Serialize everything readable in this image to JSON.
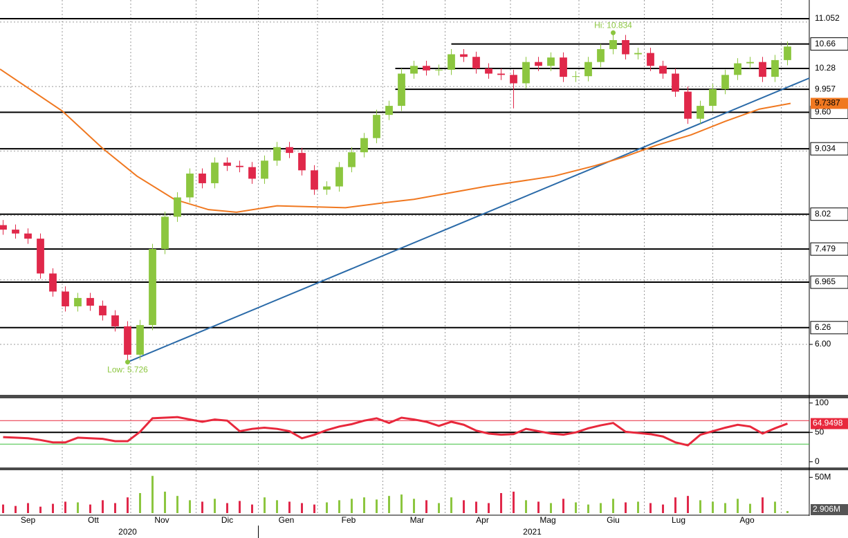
{
  "chart_data": {
    "type": "candlestick",
    "x": [
      1,
      5,
      9,
      13,
      17,
      21,
      25,
      29,
      33,
      37,
      41,
      45,
      49,
      53,
      57,
      61,
      65,
      69,
      73,
      77,
      81,
      85,
      89,
      93,
      97,
      101,
      105,
      109,
      113,
      117,
      121,
      125,
      129,
      133,
      137,
      141,
      145,
      149,
      153,
      157,
      161,
      165,
      169,
      173,
      177,
      181,
      185,
      189,
      193,
      197,
      201,
      205,
      209,
      213,
      217,
      221,
      225,
      229,
      233,
      237,
      241,
      245,
      249,
      253
    ],
    "open": [
      7.85,
      7.78,
      7.72,
      7.64,
      7.1,
      6.82,
      6.59,
      6.72,
      6.6,
      6.45,
      6.28,
      5.84,
      6.3,
      7.48,
      7.98,
      8.28,
      8.65,
      8.5,
      8.82,
      8.77,
      8.75,
      8.57,
      8.85,
      9.06,
      8.97,
      8.7,
      8.4,
      8.45,
      8.75,
      8.98,
      9.2,
      9.56,
      9.7,
      10.2,
      10.32,
      10.25,
      10.26,
      10.5,
      10.46,
      10.28,
      10.2,
      10.18,
      10.05,
      10.38,
      10.32,
      10.45,
      10.15,
      10.16,
      10.38,
      10.58,
      10.72,
      10.5,
      10.52,
      10.32,
      10.2,
      9.92,
      9.5,
      9.7,
      9.96,
      10.18,
      10.36,
      10.38,
      10.15,
      10.41
    ],
    "high": [
      7.93,
      7.86,
      7.8,
      7.72,
      7.18,
      6.9,
      6.8,
      6.8,
      6.68,
      6.53,
      6.36,
      6.38,
      7.56,
      8.06,
      8.36,
      8.73,
      8.73,
      8.9,
      8.9,
      8.85,
      8.83,
      8.93,
      9.14,
      9.14,
      9.05,
      8.78,
      8.53,
      8.83,
      9.06,
      9.28,
      9.64,
      9.78,
      10.28,
      10.4,
      10.4,
      10.34,
      10.58,
      10.58,
      10.54,
      10.36,
      10.28,
      10.26,
      10.46,
      10.46,
      10.53,
      10.53,
      10.24,
      10.46,
      10.66,
      10.83,
      10.8,
      10.6,
      10.6,
      10.4,
      10.28,
      10.0,
      9.78,
      10.04,
      10.26,
      10.44,
      10.46,
      10.46,
      10.49,
      10.7
    ],
    "low": [
      7.7,
      7.64,
      7.56,
      7.02,
      6.74,
      6.51,
      6.51,
      6.52,
      6.37,
      6.2,
      5.73,
      5.76,
      6.22,
      7.4,
      7.9,
      8.2,
      8.42,
      8.42,
      8.69,
      8.67,
      8.49,
      8.49,
      8.77,
      8.89,
      8.62,
      8.32,
      8.32,
      8.37,
      8.67,
      8.9,
      9.12,
      9.48,
      9.62,
      10.12,
      10.17,
      10.17,
      10.18,
      10.38,
      10.2,
      10.12,
      10.1,
      9.66,
      9.97,
      10.24,
      10.24,
      10.07,
      10.07,
      10.08,
      10.3,
      10.5,
      10.42,
      10.42,
      10.24,
      10.12,
      9.84,
      9.42,
      9.42,
      9.62,
      9.88,
      10.1,
      10.28,
      10.07,
      10.07,
      10.33
    ],
    "close": [
      7.78,
      7.72,
      7.64,
      7.1,
      6.82,
      6.59,
      6.72,
      6.6,
      6.45,
      6.28,
      5.84,
      6.3,
      7.48,
      7.98,
      8.28,
      8.65,
      8.5,
      8.82,
      8.77,
      8.75,
      8.57,
      8.85,
      9.06,
      8.97,
      8.7,
      8.4,
      8.45,
      8.75,
      8.98,
      9.2,
      9.56,
      9.7,
      10.2,
      10.32,
      10.25,
      10.26,
      10.5,
      10.46,
      10.28,
      10.2,
      10.18,
      10.05,
      10.38,
      10.32,
      10.45,
      10.15,
      10.16,
      10.38,
      10.58,
      10.72,
      10.5,
      10.52,
      10.32,
      10.2,
      9.92,
      9.5,
      9.7,
      9.96,
      10.18,
      10.36,
      10.38,
      10.15,
      10.41,
      10.62
    ],
    "up_color": "#8cc63f",
    "down_color": "#e0284a",
    "xlim": [
      0,
      260
    ],
    "ylim": [
      5.228,
      11.342
    ],
    "yticks": [
      {
        "value": 6,
        "label": "6.00"
      }
    ],
    "ygrid": [
      7,
      8,
      9,
      10,
      11
    ],
    "xgrid": [
      20,
      42,
      63,
      83,
      102,
      123,
      143,
      164,
      186,
      207,
      229,
      251
    ],
    "xticks": [
      {
        "value": 9,
        "label": "Sep"
      },
      {
        "value": 30,
        "label": "Ott"
      },
      {
        "value": 52,
        "label": "Nov"
      },
      {
        "value": 73,
        "label": "Dic"
      },
      {
        "value": 92,
        "label": "Gen"
      },
      {
        "value": 112,
        "label": "Feb"
      },
      {
        "value": 134,
        "label": "Mar"
      },
      {
        "value": 155,
        "label": "Apr"
      },
      {
        "value": 176,
        "label": "Mag"
      },
      {
        "value": 197,
        "label": "Giu"
      },
      {
        "value": 218,
        "label": "Lug"
      },
      {
        "value": 240,
        "label": "Ago"
      }
    ],
    "year_labels": [
      {
        "value": 41,
        "label": "2020"
      },
      {
        "value": 171,
        "label": "2021"
      }
    ],
    "year_separators": [
      83
    ],
    "levels": [
      {
        "value": 11.052,
        "start": 0,
        "boxed": false
      },
      {
        "value": 10.66,
        "start": 145,
        "boxed": true
      },
      {
        "value": 10.28,
        "start": 127,
        "boxed": false
      },
      {
        "value": 9.957,
        "start": 127,
        "boxed": false
      },
      {
        "value": 9.6,
        "label": "9.60",
        "start": 0,
        "boxed": true
      },
      {
        "value": 9.034,
        "start": 0,
        "boxed": true
      },
      {
        "value": 8.02,
        "start": 0,
        "boxed": true
      },
      {
        "value": 7.479,
        "start": 0,
        "boxed": true
      },
      {
        "value": 6.965,
        "start": 0,
        "boxed": true
      },
      {
        "value": 6.26,
        "start": 0,
        "boxed": true
      }
    ],
    "moving_average": {
      "color": "#f07820",
      "x": [
        0,
        20,
        33,
        44,
        56,
        67,
        76,
        89,
        111,
        124,
        133,
        156,
        178,
        191,
        200,
        211,
        222,
        233,
        244,
        254
      ],
      "values": [
        10.27,
        9.62,
        9.04,
        8.61,
        8.25,
        8.09,
        8.05,
        8.15,
        8.12,
        8.2,
        8.25,
        8.45,
        8.61,
        8.77,
        8.9,
        9.09,
        9.25,
        9.46,
        9.65,
        9.7387
      ]
    },
    "trendline": {
      "color": "#2a6aa8",
      "x": [
        41,
        260
      ],
      "values": [
        5.726,
        10.13
      ]
    },
    "annotations": [
      {
        "text": "Hi: 10.834",
        "x": 197,
        "value": 10.834,
        "color": "#8cc63f"
      },
      {
        "text": "Low: 5.726",
        "x": 41,
        "value": 5.726,
        "color": "#8cc63f"
      }
    ],
    "rsi": {
      "type": "line",
      "color": "#e8283c",
      "values": [
        42,
        41,
        40,
        37,
        33,
        33,
        41,
        40,
        39,
        35,
        35,
        51,
        74,
        75,
        76,
        72,
        68,
        72,
        70,
        52,
        56,
        58,
        56,
        52,
        40,
        46,
        54,
        60,
        64,
        70,
        74,
        66,
        75,
        72,
        68,
        61,
        68,
        63,
        53,
        48,
        46,
        47,
        56,
        52,
        48,
        46,
        50,
        57,
        62,
        66,
        51,
        49,
        47,
        43,
        33,
        28,
        46,
        52,
        58,
        63,
        60,
        48,
        57,
        64.9498
      ],
      "ylim": [
        -5,
        108
      ],
      "yticks": [
        0,
        50,
        100
      ],
      "hlines": [
        {
          "value": 70,
          "color": "#e8283c"
        },
        {
          "value": 50,
          "color": "#000000"
        },
        {
          "value": 30,
          "color": "#3bbf3b"
        }
      ]
    },
    "volume": {
      "type": "bar",
      "values": [
        12,
        10,
        14,
        9,
        13,
        16,
        15,
        12,
        18,
        14,
        22,
        28,
        52,
        30,
        24,
        18,
        16,
        20,
        14,
        17,
        12,
        22,
        18,
        16,
        14,
        12,
        15,
        18,
        20,
        22,
        19,
        24,
        26,
        20,
        18,
        14,
        22,
        18,
        16,
        14,
        28,
        30,
        18,
        16,
        14,
        20,
        15,
        12,
        14,
        20,
        15,
        16,
        14,
        12,
        22,
        24,
        18,
        16,
        14,
        20,
        13,
        22,
        16,
        2.906
      ],
      "ylim": [
        0,
        58
      ],
      "yticks": [
        {
          "value": 50,
          "label": "50M"
        }
      ],
      "last_label": "2.906M"
    }
  }
}
